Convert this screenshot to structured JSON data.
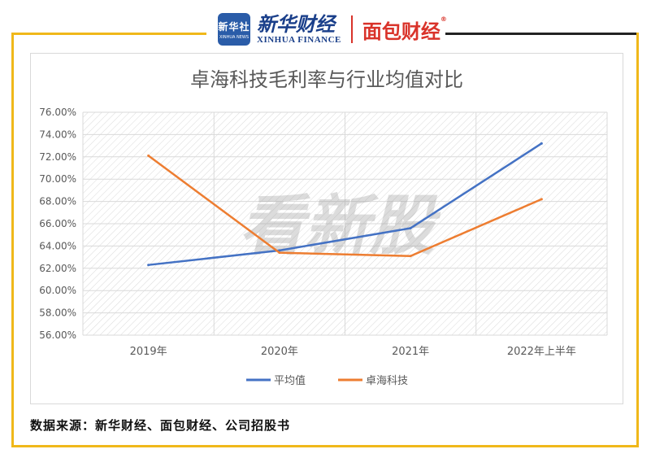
{
  "logos": {
    "xinhua_badge_cn": "新华社",
    "xinhua_badge_en": "XINHUA NEWS",
    "xinhua_finance_cn": "新华财经",
    "xinhua_finance_en": "XINHUA FINANCE",
    "mianbao_cn": "面包财经",
    "mianbao_reg": "®"
  },
  "watermark": "看新股",
  "source_text": "数据来源：新华财经、面包财经、公司招股书",
  "colors": {
    "frame_accent": "#f0b81a",
    "series_avg": "#4472c4",
    "series_zhuohai": "#ed7d31"
  },
  "chart_data": {
    "type": "line",
    "title": "卓海科技毛利率与行业均值对比",
    "categories": [
      "2019年",
      "2020年",
      "2021年",
      "2022年上半年"
    ],
    "series": [
      {
        "name": "平均值",
        "color": "#4472c4",
        "values": [
          62.3,
          63.6,
          65.6,
          73.2
        ]
      },
      {
        "name": "卓海科技",
        "color": "#ed7d31",
        "values": [
          72.1,
          63.4,
          63.1,
          68.2
        ]
      }
    ],
    "ylim": [
      56,
      76
    ],
    "yticks": [
      "76.00%",
      "74.00%",
      "72.00%",
      "70.00%",
      "68.00%",
      "66.00%",
      "64.00%",
      "62.00%",
      "60.00%",
      "58.00%",
      "56.00%"
    ],
    "grid": true,
    "legend": "bottom"
  }
}
